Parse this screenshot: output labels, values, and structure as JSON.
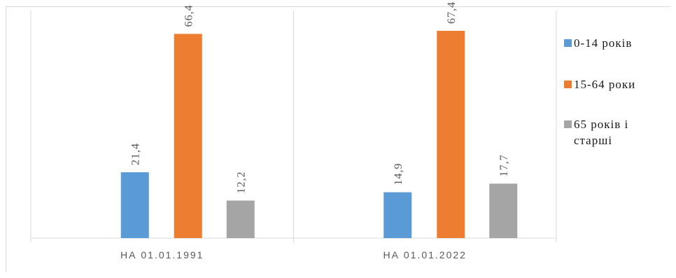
{
  "chart_data": {
    "type": "bar",
    "categories": [
      "НА 01.01.1991",
      "НА 01.01.2022"
    ],
    "series": [
      {
        "name": "0-14 років",
        "values": [
          21.4,
          14.9
        ],
        "labels": [
          "21,4",
          "14,9"
        ],
        "color": "#5b9bd5"
      },
      {
        "name": "15-64 роки",
        "values": [
          66.4,
          67.4
        ],
        "labels": [
          "66,4",
          "67,4"
        ],
        "color": "#ed7d31"
      },
      {
        "name": "65 років і старші",
        "legend_lines": [
          "65 років і",
          "старші"
        ],
        "values": [
          12.2,
          17.7
        ],
        "labels": [
          "12,2",
          "17,7"
        ],
        "color": "#a5a5a5"
      }
    ],
    "ylim": [
      0,
      74
    ],
    "grid": false,
    "legend_position": "right",
    "axis_color": "#d9d9d9"
  }
}
